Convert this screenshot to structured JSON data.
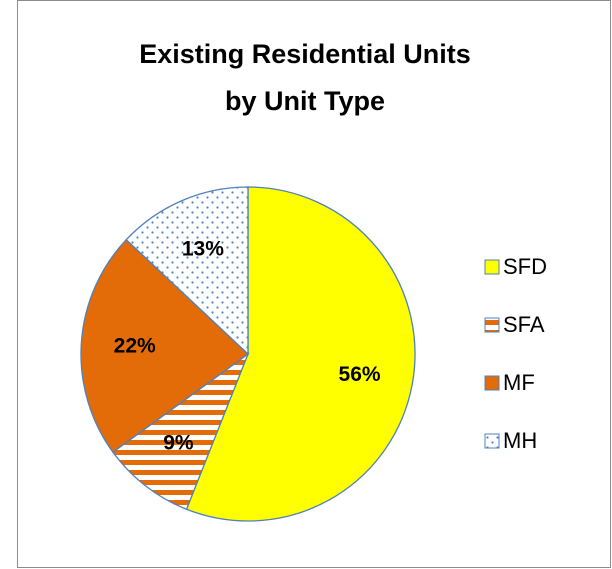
{
  "chart_data": {
    "type": "pie",
    "title": [
      "Existing Residential Units",
      "by Unit Type"
    ],
    "categories": [
      "SFD",
      "SFA",
      "MF",
      "MH"
    ],
    "values": [
      56,
      9,
      22,
      13
    ],
    "value_labels": [
      "56%",
      "9%",
      "22%",
      "13%"
    ],
    "colors": [
      "#ffff00",
      "#e36c09",
      "#e36c09",
      "#4f81bd"
    ],
    "patterns": [
      "solid",
      "horizontal-stripes",
      "solid",
      "dots"
    ],
    "legend": "right"
  }
}
